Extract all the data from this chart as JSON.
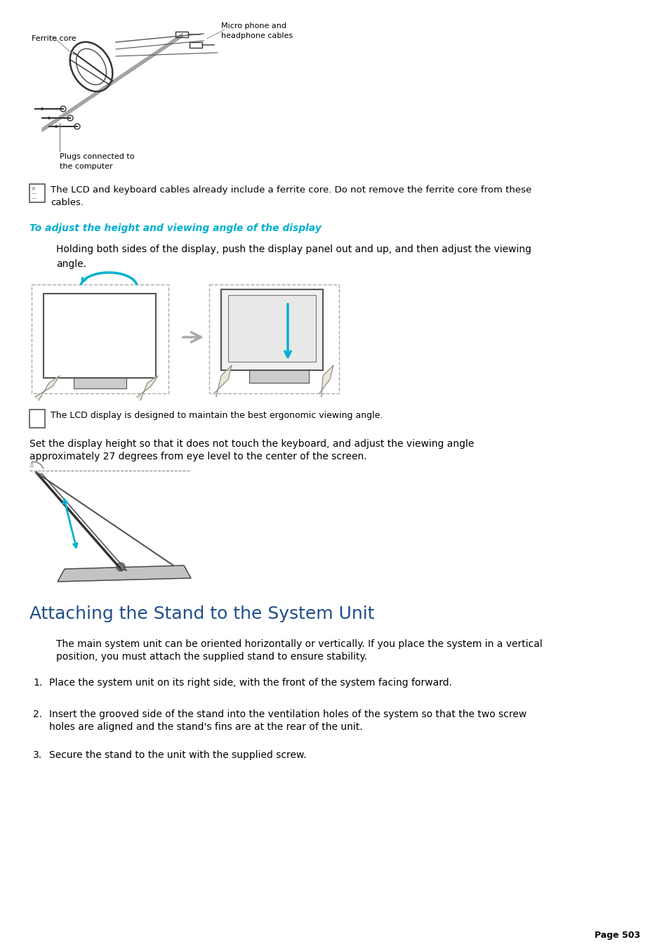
{
  "bg_color": "#ffffff",
  "page_width": 9.54,
  "page_height": 13.51,
  "text_color": "#000000",
  "heading_color": "#1f4e8c",
  "cyan_color": "#00b0d0",
  "gray_color": "#888888",
  "page_number": "Page 503",
  "note1_text": "The LCD and keyboard cables already include a ferrite core. Do not remove the ferrite core from these\ncables.",
  "italic_heading": "To adjust the height and viewing angle of the display",
  "body1": "Holding both sides of the display, push the display panel out and up, and then adjust the viewing\nangle.",
  "note2_text": "The LCD display is designed to maintain the best ergonomic viewing angle.",
  "body2_line1": "Set the display height so that it does not touch the keyboard, and adjust the viewing angle",
  "body2_line2": "approximately 27 degrees from eye level to the center of the screen.",
  "section_heading": "Attaching the Stand to the System Unit",
  "section_body_line1": "The main system unit can be oriented horizontally or vertically. If you place the system in a vertical",
  "section_body_line2": "position, you must attach the supplied stand to ensure stability.",
  "list1": "Place the system unit on its right side, with the front of the system facing forward.",
  "list2_line1": "Insert the grooved side of the stand into the ventilation holes of the system so that the two screw",
  "list2_line2": "holes are aligned and the stand's fins are at the rear of the unit.",
  "list3": "Secure the stand to the unit with the supplied screw.",
  "ferrite_label": "Ferrite core",
  "cable_label1": "Micro phone and",
  "cable_label2": "headphone cables",
  "plug_label1": "Plugs connected to",
  "plug_label2": "the computer"
}
